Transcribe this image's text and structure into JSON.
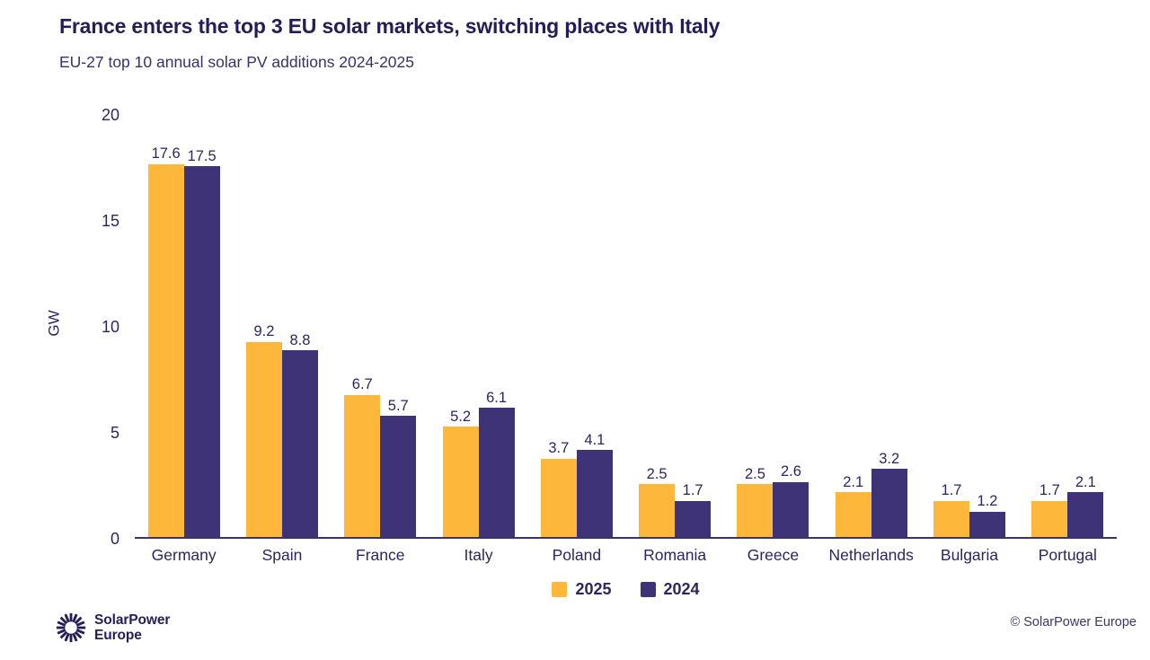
{
  "chart_data": {
    "type": "bar",
    "title": "France enters the top 3 EU solar markets, switching places with Italy",
    "subtitle": "EU-27 top 10 annual solar PV additions 2024-2025",
    "categories": [
      "Germany",
      "Spain",
      "France",
      "Italy",
      "Poland",
      "Romania",
      "Greece",
      "Netherlands",
      "Bulgaria",
      "Portugal"
    ],
    "series": [
      {
        "name": "2025",
        "color": "#FDB73B",
        "values": [
          17.6,
          9.2,
          6.7,
          5.2,
          3.7,
          2.5,
          2.5,
          2.1,
          1.7,
          1.7
        ]
      },
      {
        "name": "2024",
        "color": "#3E3377",
        "values": [
          17.5,
          8.8,
          5.7,
          6.1,
          4.1,
          1.7,
          2.6,
          3.2,
          1.2,
          2.1
        ]
      }
    ],
    "xlabel": "",
    "ylabel": "GW",
    "yticks": [
      0,
      5,
      10,
      15,
      20
    ],
    "ylim": [
      0,
      20
    ],
    "grid": false,
    "legend_position": "bottom",
    "value_labels": true,
    "value_decimals": 1
  },
  "footer": {
    "logo_icon": "sunburst-icon",
    "logo_line1": "SolarPower",
    "logo_line2": "Europe",
    "copyright": "© SolarPower Europe"
  },
  "colors": {
    "background": "#ffffff",
    "text_navy": "#241E58",
    "axis_line": "#3A3564",
    "series_2025": "#FDB73B",
    "series_2024": "#3E3377"
  }
}
